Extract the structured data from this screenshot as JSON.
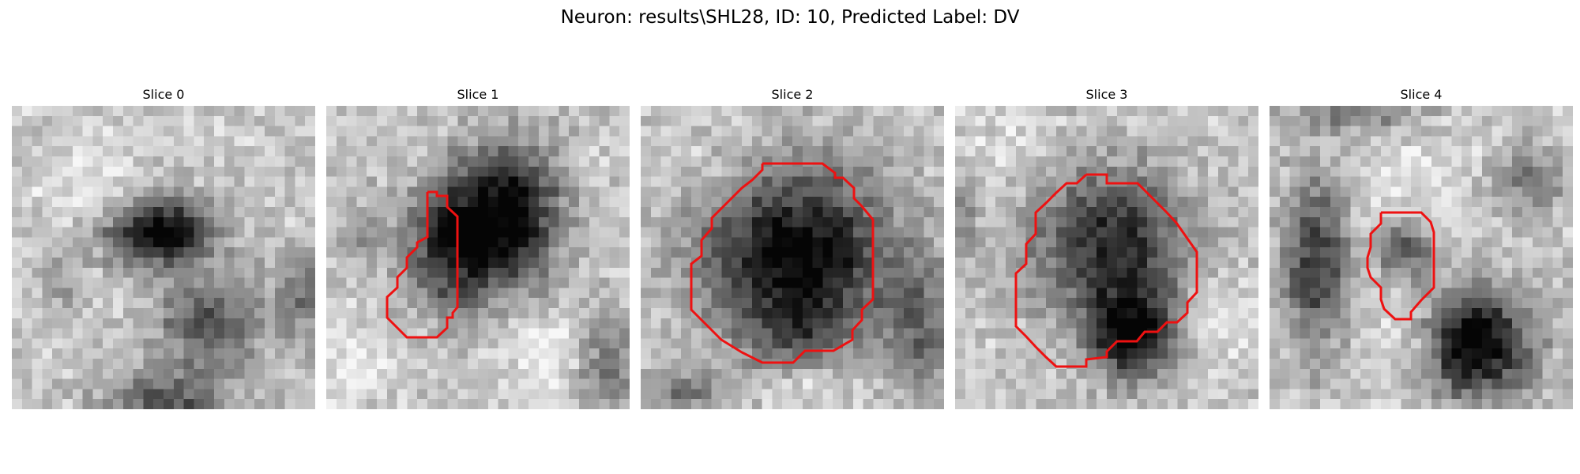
{
  "figure": {
    "suptitle": "Neuron: results\\SHL28, ID: 10, Predicted Label: DV",
    "contour_color": "#ee1111"
  },
  "slices": [
    {
      "title": "Slice 0",
      "has_contour": false
    },
    {
      "title": "Slice 1",
      "has_contour": true
    },
    {
      "title": "Slice 2",
      "has_contour": true
    },
    {
      "title": "Slice 3",
      "has_contour": true
    },
    {
      "title": "Slice 4",
      "has_contour": true
    }
  ]
}
